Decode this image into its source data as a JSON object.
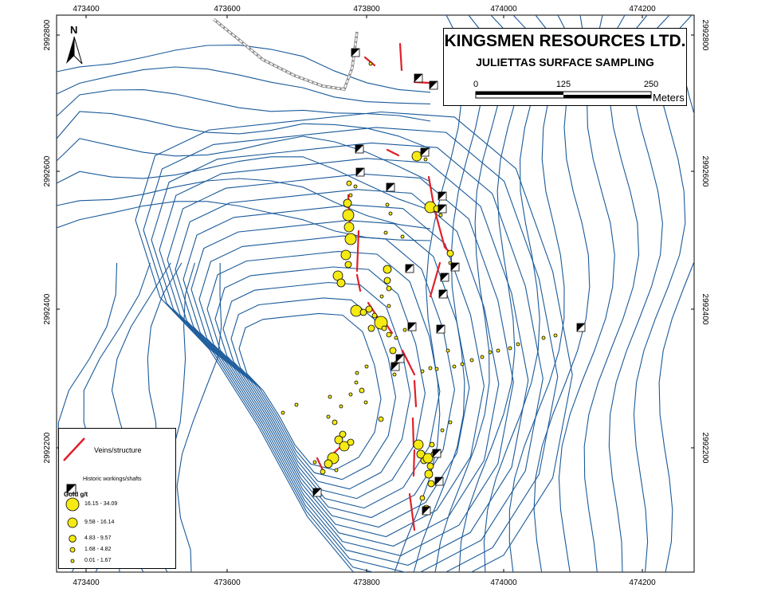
{
  "title": {
    "company": "KINGSMEN RESOURCES LTD.",
    "subtitle": "JULIETTAS SURFACE SAMPLING"
  },
  "scale_bar": {
    "labels": [
      "0",
      "125",
      "250"
    ],
    "unit": "Meters"
  },
  "north_arrow": {
    "label": "N"
  },
  "easting_ticks": [
    "473400",
    "473600",
    "473800",
    "474000",
    "474200"
  ],
  "northing_ticks": [
    "2992800",
    "2992600",
    "2992400",
    "2992200"
  ],
  "legend": {
    "veins_label": "Veins/structure",
    "workings_label": "Historic workings/shafts",
    "gold_title": "Gold g/t",
    "gold_classes": [
      "16.15 - 34.09",
      "9.58 - 16.14",
      "4.83 - 9.57",
      "1.68 - 4.82",
      "0.01 - 1.67"
    ]
  },
  "colors": {
    "contour": "#1a5a9a",
    "vein": "#e0202a",
    "sample_fill": "#f5ea14",
    "sample_stroke": "#000000",
    "road": "#888888"
  }
}
